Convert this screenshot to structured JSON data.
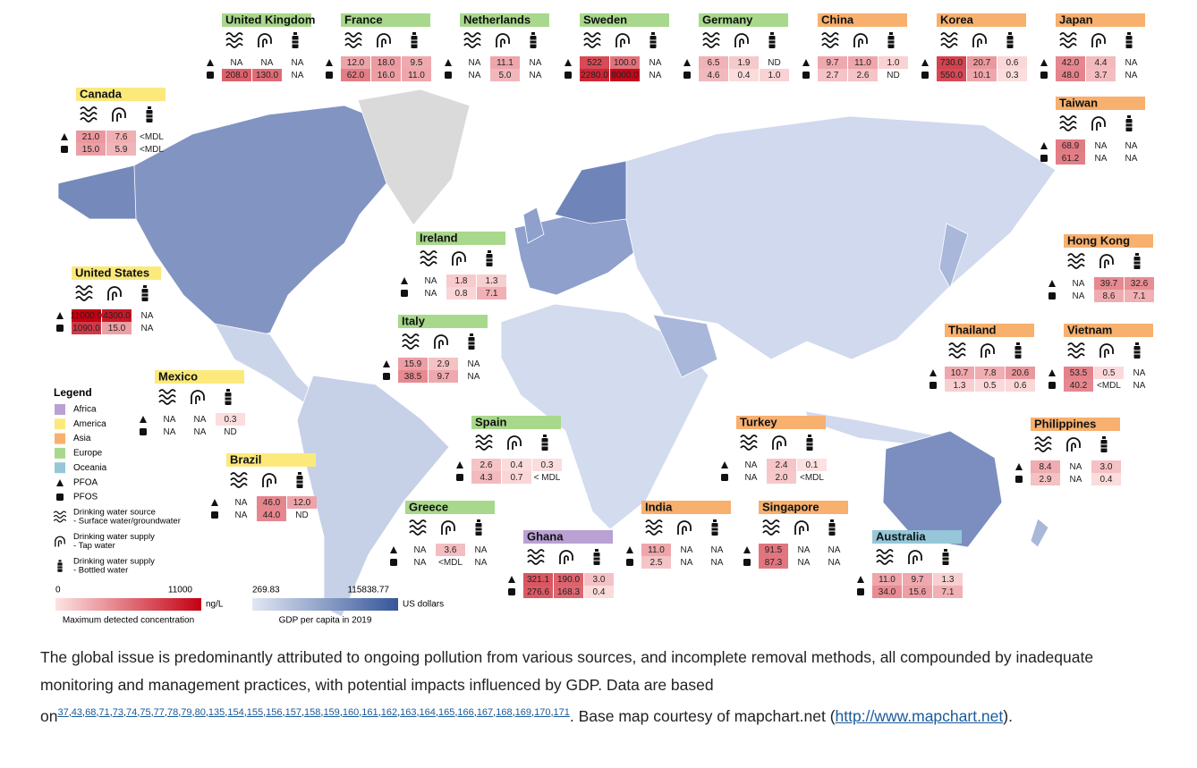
{
  "regions": [
    {
      "name": "Africa",
      "color": "#b9a1d3",
      "countries": [
        {
          "name": "Ghana",
          "pfoa": [
            "321.1",
            "190.0",
            "3.0"
          ],
          "pfos": [
            "276.6",
            "168.3",
            "0.4"
          ]
        }
      ]
    },
    {
      "name": "America",
      "color": "#fbe97c",
      "countries": [
        {
          "name": "Canada",
          "pfoa": [
            "21.0",
            "7.6",
            "<MDL"
          ],
          "pfos": [
            "15.0",
            "5.9",
            "<MDL"
          ]
        },
        {
          "name": "United States",
          "pfoa": [
            "11000.0",
            "4300.0",
            "NA"
          ],
          "pfos": [
            "1090.0",
            "15.0",
            "NA"
          ]
        },
        {
          "name": "Mexico",
          "pfoa": [
            "NA",
            "NA",
            "0.3"
          ],
          "pfos": [
            "NA",
            "NA",
            "ND"
          ]
        },
        {
          "name": "Brazil",
          "pfoa": [
            "NA",
            "46.0",
            "12.0"
          ],
          "pfos": [
            "NA",
            "44.0",
            "ND"
          ]
        }
      ]
    },
    {
      "name": "Asia",
      "color": "#f7b06e",
      "countries": [
        {
          "name": "China",
          "pfoa": [
            "9.7",
            "11.0",
            "1.0"
          ],
          "pfos": [
            "2.7",
            "2.6",
            "ND"
          ]
        },
        {
          "name": "Korea",
          "pfoa": [
            "730.0",
            "20.7",
            "0.6"
          ],
          "pfos": [
            "550.0",
            "10.1",
            "0.3"
          ]
        },
        {
          "name": "Japan",
          "pfoa": [
            "42.0",
            "4.4",
            "NA"
          ],
          "pfos": [
            "48.0",
            "3.7",
            "NA"
          ]
        },
        {
          "name": "Taiwan",
          "pfoa": [
            "68.9",
            "NA",
            "NA"
          ],
          "pfos": [
            "61.2",
            "NA",
            "NA"
          ]
        },
        {
          "name": "Hong Kong",
          "pfoa": [
            "NA",
            "39.7",
            "32.6"
          ],
          "pfos": [
            "NA",
            "8.6",
            "7.1"
          ]
        },
        {
          "name": "Thailand",
          "pfoa": [
            "10.7",
            "7.8",
            "20.6"
          ],
          "pfos": [
            "1.3",
            "0.5",
            "0.6"
          ]
        },
        {
          "name": "Vietnam",
          "pfoa": [
            "53.5",
            "0.5",
            "NA"
          ],
          "pfos": [
            "40.2",
            "<MDL",
            "NA"
          ]
        },
        {
          "name": "Philippines",
          "pfoa": [
            "8.4",
            "NA",
            "3.0"
          ],
          "pfos": [
            "2.9",
            "NA",
            "0.4"
          ]
        },
        {
          "name": "Turkey",
          "pfoa": [
            "NA",
            "2.4",
            "0.1"
          ],
          "pfos": [
            "NA",
            "2.0",
            "<MDL"
          ]
        },
        {
          "name": "India",
          "pfoa": [
            "11.0",
            "NA",
            "NA"
          ],
          "pfos": [
            "2.5",
            "NA",
            "NA"
          ]
        },
        {
          "name": "Singapore",
          "pfoa": [
            "91.5",
            "NA",
            "NA"
          ],
          "pfos": [
            "87.3",
            "NA",
            "NA"
          ]
        }
      ]
    },
    {
      "name": "Europe",
      "color": "#a8d88c",
      "countries": [
        {
          "name": "United Kingdom",
          "pfoa": [
            "NA",
            "NA",
            "NA"
          ],
          "pfos": [
            "208.0",
            "130.0",
            "NA"
          ]
        },
        {
          "name": "France",
          "pfoa": [
            "12.0",
            "18.0",
            "9.5"
          ],
          "pfos": [
            "62.0",
            "16.0",
            "11.0"
          ]
        },
        {
          "name": "Netherlands",
          "pfoa": [
            "NA",
            "11.1",
            "NA"
          ],
          "pfos": [
            "NA",
            "5.0",
            "NA"
          ]
        },
        {
          "name": "Sweden",
          "pfoa": [
            "522",
            "100.0",
            "NA"
          ],
          "pfos": [
            "2280.0",
            "8000.0",
            "NA"
          ]
        },
        {
          "name": "Germany",
          "pfoa": [
            "6.5",
            "1.9",
            "ND"
          ],
          "pfos": [
            "4.6",
            "0.4",
            "1.0"
          ]
        },
        {
          "name": "Ireland",
          "pfoa": [
            "NA",
            "1.8",
            "1.3"
          ],
          "pfos": [
            "NA",
            "0.8",
            "7.1"
          ]
        },
        {
          "name": "Italy",
          "pfoa": [
            "15.9",
            "2.9",
            "NA"
          ],
          "pfos": [
            "38.5",
            "9.7",
            "NA"
          ]
        },
        {
          "name": "Spain",
          "pfoa": [
            "2.6",
            "0.4",
            "0.3"
          ],
          "pfos": [
            "4.3",
            "0.7",
            "< MDL"
          ]
        },
        {
          "name": "Greece",
          "pfoa": [
            "NA",
            "3.6",
            "NA"
          ],
          "pfos": [
            "NA",
            "<MDL",
            "NA"
          ]
        }
      ]
    },
    {
      "name": "Oceania",
      "color": "#95c7d9",
      "countries": [
        {
          "name": "Australia",
          "pfoa": [
            "11.0",
            "9.7",
            "1.3"
          ],
          "pfos": [
            "34.0",
            "15.6",
            "7.1"
          ]
        }
      ]
    }
  ],
  "legend": {
    "title": "Legend",
    "pfoa": "PFOA",
    "pfos": "PFOS",
    "sources": [
      [
        "Drinking water source",
        "- Surface water/groundwater"
      ],
      [
        "Drinking water supply",
        "- Tap water"
      ],
      [
        "Drinking water supply",
        "- Bottled water"
      ]
    ]
  },
  "concentration_scale": {
    "min": 0,
    "max": 11000,
    "unit": "ng/L",
    "label": "Maximum detected concentration",
    "colors": [
      "#fde3e3",
      "#c40012"
    ]
  },
  "gdp_scale": {
    "min": 269.83,
    "max": 115838.77,
    "unit": "US dollars",
    "label": "GDP per capita in 2019",
    "colors": [
      "#e1e7f3",
      "#36569a"
    ]
  },
  "caption": {
    "text": "The global issue is predominantly attributed to ongoing pollution from various sources, and incomplete removal methods, all compounded by inadequate monitoring and management practices, with potential impacts influenced by GDP. Data are based on",
    "refs": [
      "37",
      "43",
      "68",
      "71",
      "73",
      "74",
      "75",
      "77",
      "78",
      "79",
      "80",
      "135",
      "154",
      "155",
      "156",
      "157",
      "158",
      "159",
      "160",
      "161",
      "162",
      "163",
      "164",
      "165",
      "166",
      "167",
      "168",
      "169",
      "170",
      "171"
    ],
    "after": ". Base map courtesy of mapchart.net (",
    "link": "http://www.mapchart.net",
    "end": ")."
  }
}
